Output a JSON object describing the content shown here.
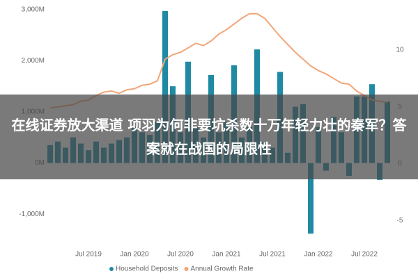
{
  "chart_data": {
    "type": "bar",
    "annotation": "在线证券放大渠道 项羽为何非要坑杀数十万年轻力壮的秦军？答案就在战国的局限性",
    "categories": [
      null,
      null,
      null,
      null,
      null,
      "Jul 2019",
      null,
      null,
      null,
      null,
      null,
      "Jan 2020",
      null,
      null,
      null,
      null,
      null,
      "Jul 2020",
      null,
      null,
      null,
      null,
      null,
      "Jan 2021",
      null,
      null,
      null,
      null,
      null,
      "Jul 2021",
      null,
      null,
      null,
      null,
      null,
      "Jan 2022",
      null,
      null,
      null,
      null,
      null,
      "Jul 2022",
      null,
      null,
      null
    ],
    "series": [
      {
        "name": "Household Deposits",
        "type": "bar",
        "color": "#1f8aa3",
        "values": [
          350,
          420,
          300,
          500,
          380,
          250,
          420,
          300,
          380,
          450,
          500,
          700,
          600,
          550,
          800,
          2970,
          1500,
          600,
          1980,
          700,
          500,
          1720,
          600,
          800,
          1910,
          500,
          700,
          2220,
          400,
          300,
          1780,
          200,
          1100,
          1150,
          -1380,
          700,
          -150,
          900,
          600,
          -250,
          1300,
          1300,
          1540,
          -330,
          1200
        ]
      },
      {
        "name": "Annual Growth Rate",
        "type": "line",
        "color": "#f3a578",
        "axis": "y2",
        "values": [
          4.9,
          5.0,
          5.1,
          5.2,
          5.5,
          5.6,
          6.0,
          6.3,
          6.4,
          6.2,
          6.5,
          6.6,
          6.9,
          7.0,
          7.3,
          9.2,
          9.6,
          9.8,
          10.2,
          10.6,
          10.4,
          10.8,
          11.4,
          11.8,
          12.3,
          12.8,
          13.2,
          13.2,
          12.8,
          12.0,
          11.2,
          10.5,
          9.8,
          9.2,
          8.6,
          8.2,
          7.9,
          7.5,
          7.1,
          7.0,
          6.4,
          6.0,
          5.6,
          5.5,
          5.4
        ]
      }
    ],
    "ylim": [
      -1500,
      3050
    ],
    "yticks": [
      {
        "value": -1000,
        "label": "-1,000M"
      },
      {
        "value": 0,
        "label": "0M"
      },
      {
        "value": 1000,
        "label": "1,000M"
      },
      {
        "value": 2000,
        "label": "2,000M"
      },
      {
        "value": 3000,
        "label": "3,000M"
      }
    ],
    "y2lim": [
      -6.7,
      13.8
    ],
    "y2ticks": [
      -5,
      0,
      5,
      10
    ],
    "grid": false,
    "legend": "bottom"
  }
}
